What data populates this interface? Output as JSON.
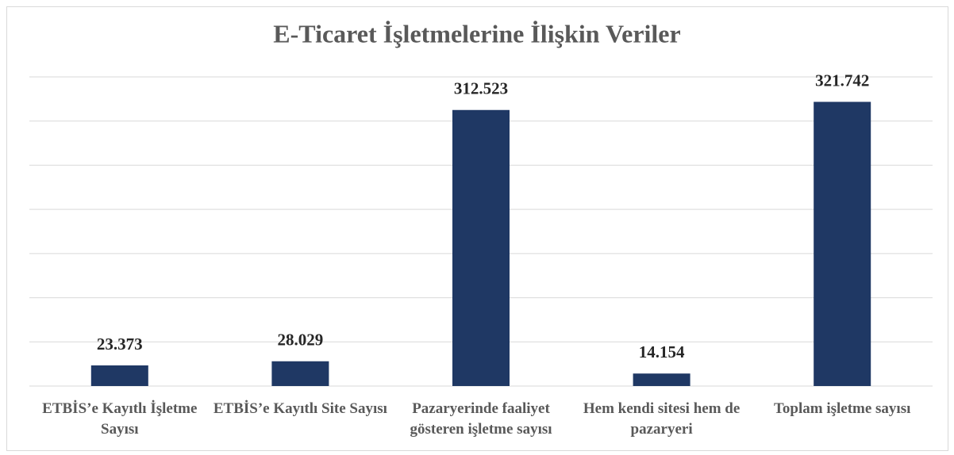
{
  "chart_data": {
    "type": "bar",
    "title": "E-Ticaret İşletmelerine İlişkin Veriler",
    "categories": [
      "ETBİS’e Kayıtlı İşletme Sayısı",
      "ETBİS’e Kayıtlı Site Sayısı",
      "Pazaryerinde faaliyet gösteren işletme sayısı",
      "Hem kendi sitesi hem de pazaryeri",
      "Toplam işletme sayısı"
    ],
    "values": [
      23373,
      28029,
      312523,
      14154,
      321742
    ],
    "value_labels": [
      "23.373",
      "28.029",
      "312.523",
      "14.154",
      "321.742"
    ],
    "color": "#1f3864",
    "ylim": [
      0,
      350000
    ],
    "yticks": [
      0,
      50000,
      100000,
      150000,
      200000,
      250000,
      300000,
      350000
    ],
    "grid": true
  }
}
